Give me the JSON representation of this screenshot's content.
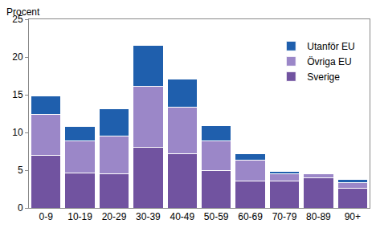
{
  "chart_data": {
    "type": "bar",
    "stacked": true,
    "y_label": "Procent",
    "categories": [
      "0-9",
      "10-19",
      "20-29",
      "30-39",
      "40-49",
      "50-59",
      "60-69",
      "70-79",
      "80-89",
      "90+"
    ],
    "series": [
      {
        "name": "Sverige",
        "color": "#7153a0",
        "values": [
          7.0,
          4.6,
          4.5,
          8.0,
          7.2,
          4.9,
          3.6,
          3.6,
          4.0,
          2.6
        ]
      },
      {
        "name": "Övriga EU",
        "color": "#9b87c8",
        "values": [
          5.4,
          4.3,
          5.0,
          8.1,
          6.1,
          4.0,
          2.7,
          0.9,
          0.5,
          0.7
        ]
      },
      {
        "name": "Utanför EU",
        "color": "#1f5fad",
        "values": [
          2.4,
          1.9,
          3.6,
          5.4,
          3.8,
          2.0,
          0.9,
          0.3,
          0.1,
          0.5
        ]
      }
    ],
    "ylim": [
      0,
      25
    ],
    "yticks": [
      0,
      5,
      10,
      15,
      20,
      25
    ],
    "grid": false,
    "legend": "top right"
  }
}
